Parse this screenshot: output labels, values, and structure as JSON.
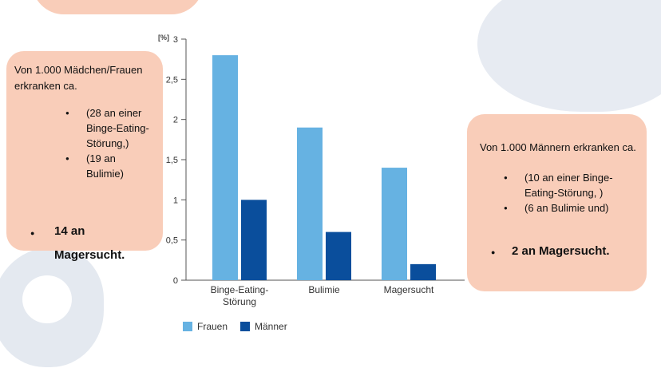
{
  "left_box": {
    "intro": "Von 1.000 Mädchen/Frauen erkranken ca.",
    "items": [
      "(28 an einer Binge-Eating-Störung,)",
      "(19 an Bulimie)"
    ],
    "highlight_line1": "14 an",
    "highlight_line2": "Magersucht."
  },
  "right_box": {
    "intro": "Von 1.000  Männern erkranken ca.",
    "items": [
      "(10 an einer Binge-Eating-Störung, )",
      "(6 an Bulimie und)"
    ],
    "highlight": "2 an Magersucht."
  },
  "colors": {
    "frauen": "#66b2e2",
    "maenner": "#0a4e9c",
    "axis": "#555555",
    "box": "#f9cdb9"
  },
  "chart_data": {
    "type": "bar",
    "unit_label": "[%]",
    "categories": [
      [
        "Binge-Eating-",
        "Störung"
      ],
      [
        "Bulimie"
      ],
      [
        "Magersucht"
      ]
    ],
    "series": [
      {
        "name": "Frauen",
        "values": [
          2.8,
          1.9,
          1.4
        ]
      },
      {
        "name": "Männer",
        "values": [
          1.0,
          0.6,
          0.2
        ]
      }
    ],
    "ylim": [
      0,
      3
    ],
    "yticks": [
      0,
      0.5,
      1,
      1.5,
      2,
      2.5,
      3
    ],
    "ytick_labels": [
      "0",
      "0,5",
      "1",
      "1,5",
      "2",
      "2,5",
      "3"
    ],
    "legend_position": "bottom-left"
  }
}
